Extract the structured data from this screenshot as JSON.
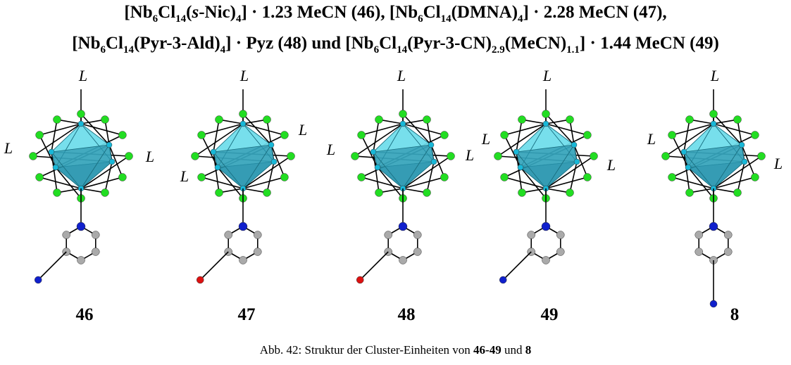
{
  "header": {
    "lines": [
      {
        "segments": [
          {
            "text": "[Nb"
          },
          {
            "text": "6",
            "style": "sub"
          },
          {
            "text": "Cl"
          },
          {
            "text": "14",
            "style": "sub"
          },
          {
            "text": "("
          },
          {
            "text": "s",
            "style": "italic"
          },
          {
            "text": "-Nic)"
          },
          {
            "text": "4",
            "style": "sub"
          },
          {
            "text": "] · 1.23 MeCN (46), [Nb"
          },
          {
            "text": "6",
            "style": "sub"
          },
          {
            "text": "Cl"
          },
          {
            "text": "14",
            "style": "sub"
          },
          {
            "text": "(DMNA)"
          },
          {
            "text": "4",
            "style": "sub"
          },
          {
            "text": "] · 2.28 MeCN (47),"
          }
        ]
      },
      {
        "segments": [
          {
            "text": "[Nb"
          },
          {
            "text": "6",
            "style": "sub"
          },
          {
            "text": "Cl"
          },
          {
            "text": "14",
            "style": "sub"
          },
          {
            "text": "(Pyr-3-Ald)"
          },
          {
            "text": "4",
            "style": "sub"
          },
          {
            "text": "] · Pyz (48) und [Nb"
          },
          {
            "text": "6",
            "style": "sub"
          },
          {
            "text": "Cl"
          },
          {
            "text": "14",
            "style": "sub"
          },
          {
            "text": "(Pyr-3-CN)"
          },
          {
            "text": "2.9",
            "style": "sub"
          },
          {
            "text": "(MeCN)"
          },
          {
            "text": "1.1",
            "style": "sub"
          },
          {
            "text": "] · 1.44 MeCN (49)"
          }
        ]
      }
    ]
  },
  "structures": [
    {
      "number": "46",
      "labels": [
        "L",
        "L",
        "L"
      ]
    },
    {
      "number": "47",
      "labels": [
        "L",
        "L",
        "L"
      ]
    },
    {
      "number": "48",
      "labels": [
        "L",
        "L",
        "L"
      ]
    },
    {
      "number": "49",
      "labels": [
        "L",
        "L",
        "L"
      ]
    },
    {
      "number": "8",
      "labels": [
        "L",
        "L",
        "L"
      ]
    }
  ],
  "caption": {
    "segments": [
      {
        "text": "Abb. 42: Struktur der Cluster-Einheiten von "
      },
      {
        "text": "46-49",
        "style": "bold"
      },
      {
        "text": " und "
      },
      {
        "text": "8",
        "style": "bold"
      }
    ]
  }
}
